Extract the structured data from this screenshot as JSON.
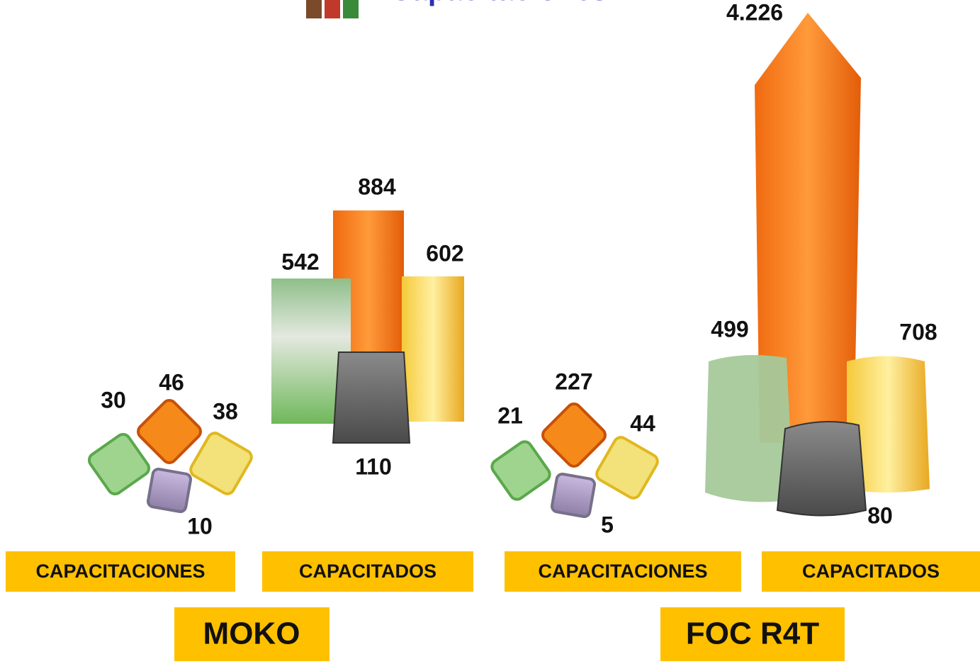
{
  "header": {
    "title": "Capacitaciones"
  },
  "programs": [
    {
      "name": "MOKO",
      "groups": [
        {
          "label": "CAPACITACIONES",
          "values": [
            "30",
            "46",
            "38",
            "10"
          ]
        },
        {
          "label": "CAPACITADOS",
          "values": [
            "542",
            "884",
            "602",
            "110"
          ]
        }
      ]
    },
    {
      "name": "FOC R4T",
      "groups": [
        {
          "label": "CAPACITACIONES",
          "values": [
            "21",
            "227",
            "44",
            "5"
          ]
        },
        {
          "label": "CAPACITADOS",
          "values": [
            "499",
            "4.226",
            "708",
            "80"
          ]
        }
      ]
    }
  ]
}
